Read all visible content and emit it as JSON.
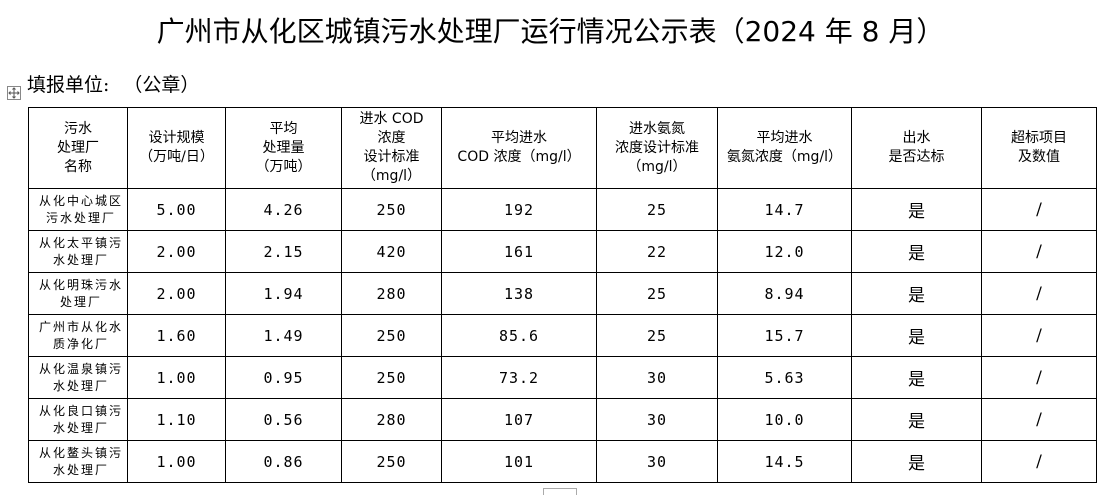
{
  "title": "广州市从化区城镇污水处理厂运行情况公示表（2024 年 8 月）",
  "unit_label": "填报单位:",
  "unit_value": "（公章）",
  "table": {
    "headers": [
      "污水\n处理厂\n名称",
      "设计规模\n（万吨/日）",
      "平均\n处理量\n（万吨）",
      "进水 COD\n浓度\n设计标准\n（mg/l）",
      "平均进水\nCOD 浓度（mg/l）",
      "进水氨氮\n浓度设计标准\n（mg/l）",
      "平均进水\n氨氮浓度（mg/l）",
      "出水\n是否达标",
      "超标项目\n及数值"
    ],
    "rows": [
      {
        "name": "从化中心城区\n污水处理厂",
        "capacity": "5.00",
        "avg_volume": "4.26",
        "cod_std": "250",
        "cod_avg": "192",
        "nh_std": "25",
        "nh_avg": "14.7",
        "compliant": "是",
        "exceed": "/"
      },
      {
        "name": "从化太平镇污\n水处理厂",
        "capacity": "2.00",
        "avg_volume": "2.15",
        "cod_std": "420",
        "cod_avg": "161",
        "nh_std": "22",
        "nh_avg": "12.0",
        "compliant": "是",
        "exceed": "/"
      },
      {
        "name": "从化明珠污水\n处理厂",
        "capacity": "2.00",
        "avg_volume": "1.94",
        "cod_std": "280",
        "cod_avg": "138",
        "nh_std": "25",
        "nh_avg": "8.94",
        "compliant": "是",
        "exceed": "/"
      },
      {
        "name": "广州市从化水\n质净化厂",
        "capacity": "1.60",
        "avg_volume": "1.49",
        "cod_std": "250",
        "cod_avg": "85.6",
        "nh_std": "25",
        "nh_avg": "15.7",
        "compliant": "是",
        "exceed": "/"
      },
      {
        "name": "从化温泉镇污\n水处理厂",
        "capacity": "1.00",
        "avg_volume": "0.95",
        "cod_std": "250",
        "cod_avg": "73.2",
        "nh_std": "30",
        "nh_avg": "5.63",
        "compliant": "是",
        "exceed": "/"
      },
      {
        "name": "从化良口镇污\n水处理厂",
        "capacity": "1.10",
        "avg_volume": "0.56",
        "cod_std": "280",
        "cod_avg": "107",
        "nh_std": "30",
        "nh_avg": "10.0",
        "compliant": "是",
        "exceed": "/"
      },
      {
        "name": "从化鳌头镇污\n水处理厂",
        "capacity": "1.00",
        "avg_volume": "0.86",
        "cod_std": "250",
        "cod_avg": "101",
        "nh_std": "30",
        "nh_avg": "14.5",
        "compliant": "是",
        "exceed": "/"
      }
    ]
  }
}
